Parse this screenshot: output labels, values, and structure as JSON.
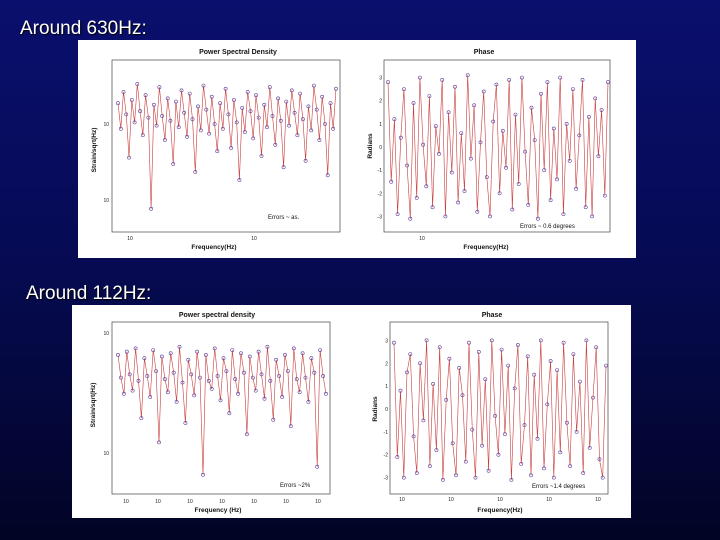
{
  "slide": {
    "heading_1": "Around 630Hz:",
    "heading_2": "Around 112Hz:"
  },
  "colors": {
    "line": "#c83c3c",
    "marker": "#5a3c9a"
  },
  "chart_data": [
    {
      "id": "psd630",
      "type": "line",
      "title": "Power Spectral Density",
      "xlabel": "Frequency(Hz)",
      "ylabel": "Strain/sqrt(Hz)",
      "annotation": "Errors ~ as.",
      "ylim": [
        0,
        1
      ],
      "yticks": [
        "10",
        "10"
      ],
      "xticks": [
        "10",
        "10"
      ],
      "values": [
        0.78,
        0.62,
        0.85,
        0.71,
        0.44,
        0.8,
        0.66,
        0.9,
        0.73,
        0.58,
        0.83,
        0.69,
        0.12,
        0.77,
        0.64,
        0.88,
        0.7,
        0.55,
        0.81,
        0.67,
        0.4,
        0.79,
        0.63,
        0.86,
        0.72,
        0.57,
        0.84,
        0.68,
        0.35,
        0.76,
        0.61,
        0.89,
        0.74,
        0.59,
        0.82,
        0.65,
        0.48,
        0.78,
        0.62,
        0.87,
        0.71,
        0.5,
        0.8,
        0.66,
        0.3,
        0.75,
        0.6,
        0.85,
        0.73,
        0.56,
        0.83,
        0.69,
        0.45,
        0.77,
        0.63,
        0.88,
        0.7,
        0.52,
        0.81,
        0.67,
        0.38,
        0.79,
        0.64,
        0.86,
        0.72,
        0.58,
        0.84,
        0.68,
        0.42,
        0.76,
        0.61,
        0.89,
        0.74,
        0.55,
        0.82,
        0.65,
        0.33,
        0.78,
        0.62,
        0.87
      ]
    },
    {
      "id": "phase630",
      "type": "line",
      "title": "Phase",
      "xlabel": "Frequency(Hz)",
      "ylabel": "Radians",
      "annotation": "Errors ~ 0.6 degrees",
      "ylim": [
        -3.5,
        3.5
      ],
      "yticks": [
        "3",
        "2",
        "1",
        "0",
        "-1",
        "-2",
        "-3"
      ],
      "xticks": [
        "10"
      ],
      "values": [
        2.8,
        -1.5,
        1.2,
        -2.9,
        0.4,
        2.5,
        -0.8,
        -3.1,
        1.9,
        -2.2,
        3.0,
        0.1,
        -1.7,
        2.2,
        -2.6,
        0.9,
        -0.3,
        2.9,
        -3.0,
        1.5,
        -1.1,
        2.6,
        -2.4,
        0.6,
        -1.9,
        3.1,
        -0.5,
        1.8,
        -2.8,
        0.2,
        2.4,
        -1.3,
        -3.0,
        1.1,
        2.7,
        -2.0,
        0.7,
        -0.9,
        2.9,
        -2.7,
        1.4,
        -1.6,
        3.0,
        -0.2,
        -2.5,
        1.7,
        0.3,
        -3.1,
        2.3,
        -1.0,
        2.8,
        -2.3,
        0.8,
        -1.4,
        3.0,
        -2.9,
        1.0,
        -0.6,
        2.5,
        -1.8,
        0.5,
        2.9,
        -2.6,
        1.3,
        -3.0,
        2.1,
        -0.4,
        1.6,
        -2.1,
        2.8
      ]
    },
    {
      "id": "psd112",
      "type": "line",
      "title": "Power spectral density",
      "xlabel": "Frequency (Hz)",
      "ylabel": "Strain/sqrt(Hz)",
      "annotation": "Errors ~2%",
      "ylim": [
        0,
        1
      ],
      "yticks": [
        "10",
        "10"
      ],
      "xticks": [
        "10",
        "10",
        "10",
        "10",
        "10",
        "10",
        "10"
      ],
      "values": [
        0.84,
        0.7,
        0.6,
        0.86,
        0.72,
        0.62,
        0.88,
        0.68,
        0.45,
        0.82,
        0.71,
        0.58,
        0.87,
        0.74,
        0.3,
        0.83,
        0.69,
        0.61,
        0.85,
        0.73,
        0.55,
        0.89,
        0.67,
        0.42,
        0.81,
        0.72,
        0.59,
        0.86,
        0.7,
        0.1,
        0.84,
        0.68,
        0.63,
        0.88,
        0.71,
        0.56,
        0.82,
        0.74,
        0.48,
        0.87,
        0.69,
        0.6,
        0.85,
        0.73,
        0.35,
        0.83,
        0.7,
        0.62,
        0.86,
        0.72,
        0.57,
        0.89,
        0.68,
        0.44,
        0.81,
        0.71,
        0.58,
        0.84,
        0.74,
        0.4,
        0.88,
        0.69,
        0.61,
        0.85,
        0.7,
        0.55,
        0.82,
        0.73,
        0.15,
        0.87,
        0.71,
        0.6
      ]
    },
    {
      "id": "phase112",
      "type": "line",
      "title": "Phase",
      "xlabel": "Frequency(Hz)",
      "ylabel": "Radians",
      "annotation": "Errors ~1.4 degrees",
      "ylim": [
        -3.5,
        3.5
      ],
      "yticks": [
        "3",
        "2",
        "1",
        "0",
        "-1",
        "-2",
        "-3"
      ],
      "xticks": [
        "10",
        "10",
        "10",
        "10",
        "10"
      ],
      "values": [
        2.9,
        -2.1,
        0.8,
        -3.0,
        1.6,
        2.4,
        -1.2,
        -2.8,
        2.0,
        -0.5,
        3.0,
        -2.5,
        1.1,
        -1.8,
        2.7,
        -3.1,
        0.4,
        2.2,
        -1.5,
        -2.9,
        1.8,
        0.6,
        -2.3,
        2.9,
        -0.9,
        -3.0,
        2.5,
        -1.6,
        1.3,
        -2.7,
        3.0,
        -0.3,
        -2.0,
        2.6,
        -1.1,
        1.9,
        -3.1,
        0.9,
        2.8,
        -2.4,
        -0.7,
        2.3,
        -2.9,
        1.5,
        -1.3,
        3.0,
        -2.6,
        0.2,
        2.1,
        -3.0,
        1.7,
        -1.9,
        2.9,
        -0.6,
        -2.5,
        2.4,
        -1.0,
        1.2,
        -2.8,
        3.0,
        -1.7,
        0.5,
        2.7,
        -2.2,
        -3.0,
        1.9
      ]
    }
  ]
}
